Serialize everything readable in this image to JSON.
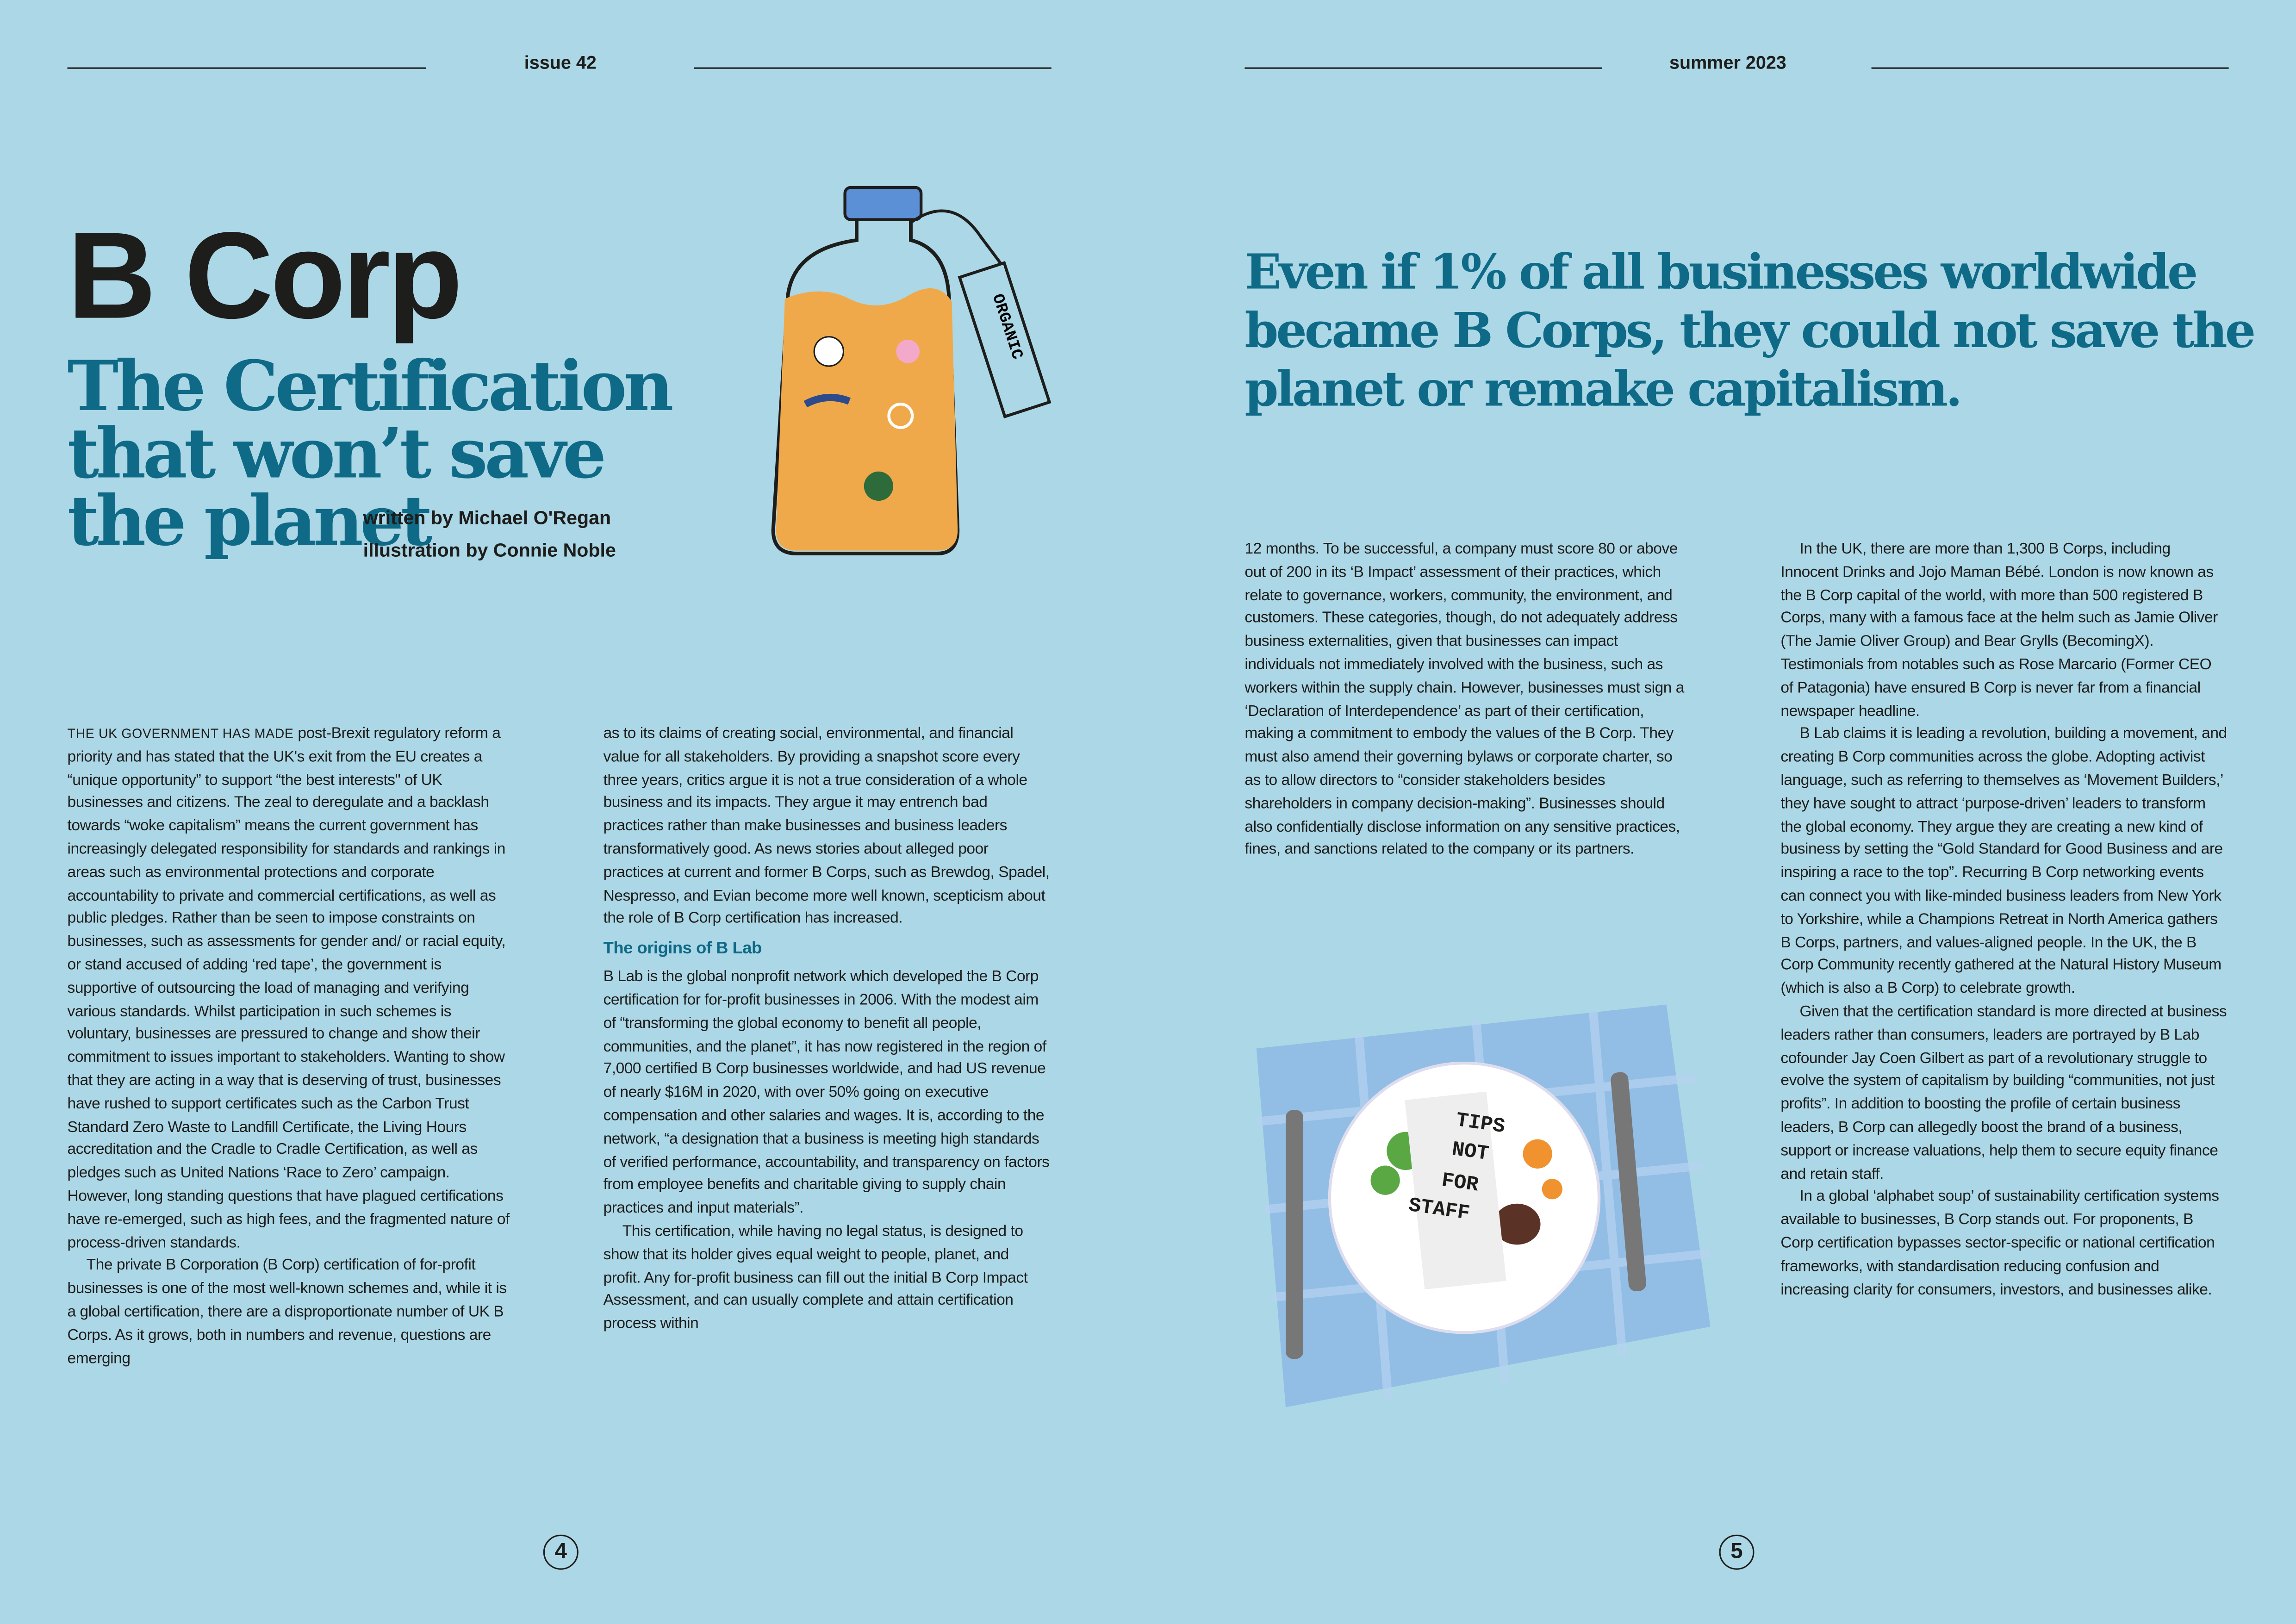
{
  "left_page": {
    "issue": "issue 42",
    "page_number": "4",
    "title": "B Corp",
    "subtitle": "The Certification that won’t save the planet",
    "byline": "written by Michael O'Regan",
    "illustrator": "illustration by Connie Noble",
    "bottle_label": "ORGANIC",
    "col1": {
      "lead": "THE UK GOVERNMENT HAS MADE",
      "paragraphs": [
        "post-Brexit regulatory reform a priority and has stated that the UK's exit from the EU creates a “unique opportunity” to support “the best interests\" of UK businesses and citizens. The zeal to deregulate and a backlash towards “woke capitalism” means the current government has increasingly delegated responsibility for standards and rankings in areas such as environmental protections and corporate accountability to private and commercial certifications, as well as public pledges. Rather than be seen to impose constraints on businesses, such as assessments for gender and/ or racial equity, or stand accused of adding ‘red tape’, the government is supportive of outsourcing the load of managing and verifying various standards. Whilst participation in such schemes is voluntary, businesses are pressured to change and show their commitment to issues important to stakeholders. Wanting to show that they are acting in a way that is deserving of trust, businesses have rushed to support certificates such as the Carbon Trust Standard Zero Waste to Landfill Certificate, the Living Hours accreditation and the Cradle to Cradle Certification, as well as pledges such as United Nations ‘Race to Zero’ campaign. However, long standing questions that have plagued certifications have re-emerged, such as high fees, and the fragmented nature of process-driven standards.",
        "The private B Corporation (B Corp) certification of for-profit businesses is one of the most well-known schemes and, while it is a global certification, there are a disproportionate number of UK B Corps. As it grows, both in numbers and revenue, questions are emerging"
      ]
    },
    "col2": {
      "paragraphs_before": [
        "as to its claims of creating social, environmental, and financial value for all stakeholders. By providing a snapshot score every three years, critics argue it is not a true consideration of a whole business and its impacts. They argue it may entrench bad practices rather than make businesses and business leaders transformatively good. As news stories about alleged poor practices at current and former B Corps, such as Brewdog, Spadel, Nespresso, and Evian become more well known, scepticism about the role of B Corp certification has increased."
      ],
      "heading": "The origins of B Lab",
      "paragraphs_after": [
        "B Lab is the global nonprofit network which developed the B Corp certification for for-profit businesses in 2006. With the modest aim of “transforming the global economy to benefit all people, communities, and the planet”, it has now registered in the region of 7,000 certified B Corp businesses worldwide, and had US revenue of nearly $16M in 2020, with over 50% going on executive compensation and other salaries and wages. It is, according to the network, “a designation that a business is meeting high standards of verified performance, accountability, and transparency on factors from employee benefits and charitable giving to supply chain practices and input materials”.",
        "This certification, while having no legal status, is designed to show that its holder gives equal weight to people, planet, and profit. Any for-profit business can fill out the initial B Corp Impact Assessment, and can usually complete and attain certification process within"
      ]
    }
  },
  "right_page": {
    "season": "summer 2023",
    "page_number": "5",
    "pull_quote": "Even if 1% of all businesses worldwide became B Corps, they could not save the planet or remake capitalism.",
    "plate_note": [
      "TIPS",
      "NOT",
      "FOR",
      "STAFF"
    ],
    "col3": {
      "paragraphs": [
        "12 months. To be successful, a company must score 80 or above out of 200 in its ‘B Impact’ assessment of their practices, which relate to governance, workers, community, the environment, and customers. These categories, though, do not adequately address business externalities, given that businesses can impact individuals not immediately involved with the business, such as workers within the supply chain. However, businesses must sign a ‘Declaration of Interdependence’ as part of their certification, making a commitment to embody the values of the B Corp. They must also amend their governing bylaws or corporate charter, so as to allow directors to “consider stakeholders besides shareholders in company decision-making”. Businesses should also confidentially disclose information on any sensitive practices, fines, and sanctions related to the company or its partners."
      ]
    },
    "col4": {
      "paragraphs": [
        "In the UK, there are more than 1,300 B Corps, including Innocent Drinks and Jojo Maman Bébé. London is now known as the B Corp capital of the world, with more than 500 registered B Corps, many with a famous face at the helm such as Jamie Oliver (The Jamie Oliver Group) and Bear Grylls (BecomingX). Testimonials from notables such as Rose Marcario (Former CEO of Patagonia) have ensured B Corp is never far from a financial newspaper headline.",
        "B Lab claims it is leading a revolution, building a movement, and creating B Corp communities across the globe. Adopting activist language, such as referring to themselves as ‘Movement Builders,’ they have sought to attract ‘purpose-driven’ leaders to transform the global economy. They argue they are creating a new kind of business by setting the “Gold Standard for Good Business and are inspiring a race to the top”. Recurring B Corp networking events can connect you with like-minded business leaders from New York to Yorkshire, while a Champions Retreat in North America gathers B Corps, partners, and values-aligned people. In the UK, the B Corp Community recently gathered at the Natural History Museum (which is also a B Corp) to celebrate growth.",
        "Given that the certification standard is more directed at business leaders rather than consumers, leaders are portrayed by B Lab cofounder Jay Coen Gilbert as part of a revolutionary struggle to evolve the system of capitalism by building “communities, not just profits”. In addition to boosting the profile of certain business leaders, B Corp can allegedly boost the brand of a business, support or increase valuations, help them to secure equity finance and retain staff.",
        "In a global ‘alphabet soup’ of sustainability certification systems available to businesses, B Corp stands out. For proponents, B Corp certification bypasses sector-specific or national certification frameworks, with standardisation reducing confusion and increasing clarity for consumers, investors, and businesses alike."
      ]
    }
  },
  "colors": {
    "background": "#acd7e6",
    "accent": "#0e6a86",
    "text": "#1d1d1b"
  }
}
